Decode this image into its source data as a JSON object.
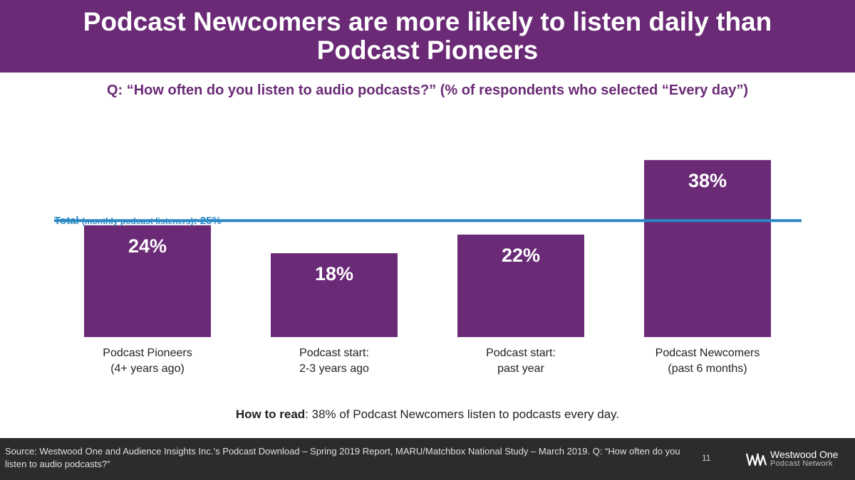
{
  "header": {
    "title": "Podcast Newcomers are more likely to listen daily than Podcast Pioneers"
  },
  "question": "Q: “How often do you listen to audio podcasts?” (% of respondents who selected “Every day”)",
  "total": {
    "label_main": "Total",
    "label_detail": "(monthly podcast listeners)",
    "label_value": ": 25%",
    "value": 25,
    "color": "#2a87c4"
  },
  "chart_data": {
    "type": "bar",
    "title": "Q: “How often do you listen to audio podcasts?” (% of respondents who selected “Every day”)",
    "categories": [
      "Podcast Pioneers\n(4+ years ago)",
      "Podcast start:\n2-3 years ago",
      "Podcast start:\npast year",
      "Podcast Newcomers\n(past 6 months)"
    ],
    "values": [
      24,
      18,
      22,
      38
    ],
    "value_labels": [
      "24%",
      "18%",
      "22%",
      "38%"
    ],
    "reference_line": {
      "label": "Total (monthly podcast listeners): 25%",
      "value": 25
    },
    "ylim": [
      0,
      40
    ],
    "unit": "%",
    "bar_color": "#6a2a76",
    "grid": false
  },
  "how_to_read": {
    "bold": "How to read",
    "text": ": 38% of Podcast Newcomers listen to podcasts every day."
  },
  "footer": {
    "source": "Source: Westwood One and Audience Insights Inc.’s Podcast Download – Spring 2019 Report, MARU/Matchbox National Study – March 2019. Q: “How often do you listen to audio podcasts?”",
    "page_number": "11",
    "logo_main": "Westwood One",
    "logo_sub": "Podcast Network"
  }
}
